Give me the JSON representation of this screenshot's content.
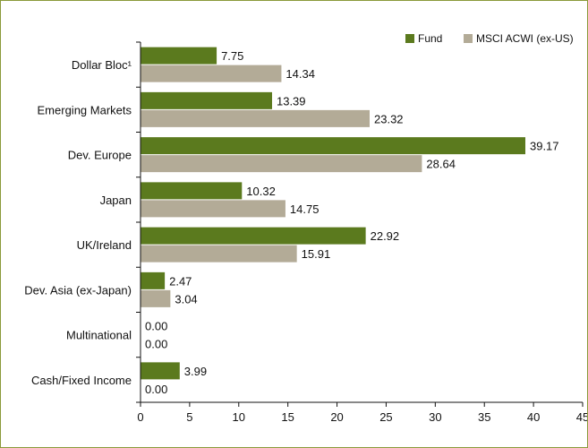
{
  "colors": {
    "fund": "#5b7a1e",
    "benchmark": "#b3ab97",
    "axis": "#111111",
    "border": "#8a9a3a"
  },
  "chart_data": {
    "type": "bar",
    "orientation": "horizontal",
    "title": "",
    "xlabel": "",
    "ylabel": "",
    "categories": [
      "Dollar Bloc¹",
      "Emerging Markets",
      "Dev. Europe",
      "Japan",
      "UK/Ireland",
      "Dev. Asia (ex-Japan)",
      "Multinational",
      "Cash/Fixed Income"
    ],
    "series": [
      {
        "name": "Fund",
        "values": [
          7.75,
          13.39,
          39.17,
          10.32,
          22.92,
          2.47,
          0.0,
          3.99
        ],
        "labels": [
          "7.75",
          "13.39",
          "39.17",
          "10.32",
          "22.92",
          "2.47",
          "0.00",
          "3.99"
        ]
      },
      {
        "name": "MSCI ACWI (ex-US)",
        "values": [
          14.34,
          23.32,
          28.64,
          14.75,
          15.91,
          3.04,
          0.0,
          0.0
        ],
        "labels": [
          "14.34",
          "23.32",
          "28.64",
          "14.75",
          "15.91",
          "3.04",
          "0.00",
          "0.00"
        ]
      }
    ],
    "xlim": [
      0,
      45
    ],
    "xticks": [
      "0",
      "5",
      "10",
      "15",
      "20",
      "25",
      "30",
      "35",
      "40",
      "45"
    ],
    "grid": false,
    "legend_position": "top-right"
  }
}
